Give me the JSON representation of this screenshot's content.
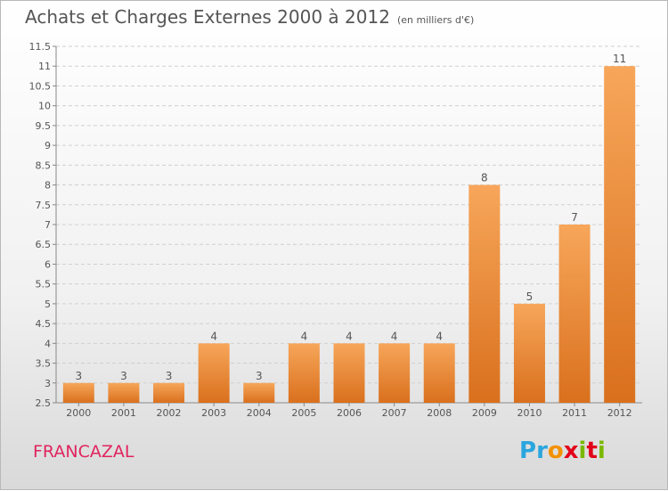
{
  "title": "Achats et Charges Externes 2000 à 2012",
  "unit": "(en milliers d'€)",
  "commune": "FRANCAZAL",
  "logo": {
    "letters": [
      "P",
      "r",
      "o",
      "x",
      "i",
      "t",
      "i"
    ],
    "colors": [
      "#2aa6de",
      "#2aa6de",
      "#f39200",
      "#e2001a",
      "#7ab800",
      "#e2001a",
      "#7ab800"
    ]
  },
  "colors": {
    "bar_light": "#f7a65a",
    "bar_dark": "#d9701d",
    "axis": "#888888",
    "label": "#555555",
    "grid": "#d0d0d0"
  },
  "chart_data": {
    "type": "bar",
    "categories": [
      "2000",
      "2001",
      "2002",
      "2003",
      "2004",
      "2005",
      "2006",
      "2007",
      "2008",
      "2009",
      "2010",
      "2011",
      "2012"
    ],
    "values": [
      3,
      3,
      3,
      4,
      3,
      4,
      4,
      4,
      4,
      8,
      5,
      7,
      11
    ],
    "data_labels": [
      "3",
      "3",
      "3",
      "4",
      "3",
      "4",
      "4",
      "4",
      "4",
      "8",
      "5",
      "7",
      "11"
    ],
    "ylim": [
      2.5,
      11.5
    ],
    "yticks": [
      2.5,
      3,
      3.5,
      4,
      4.5,
      5,
      5.5,
      6,
      6.5,
      7,
      7.5,
      8,
      8.5,
      9,
      9.5,
      10,
      10.5,
      11,
      11.5
    ],
    "ytick_labels": [
      "2.5",
      "3",
      "3.5",
      "4",
      "4.5",
      "5",
      "5.5",
      "6",
      "6.5",
      "7",
      "7.5",
      "8",
      "8.5",
      "9",
      "9.5",
      "10",
      "10.5",
      "11",
      "11.5"
    ],
    "grid": "horizontal dashed",
    "legend": "none"
  }
}
